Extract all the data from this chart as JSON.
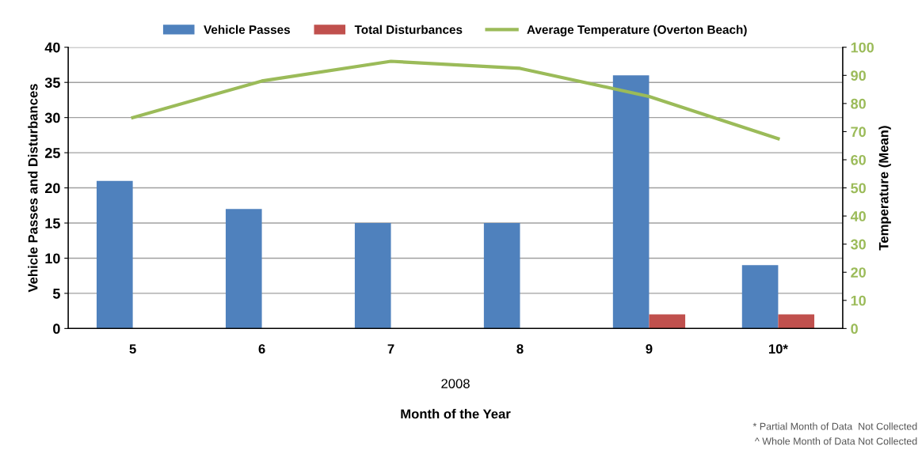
{
  "chart_data": {
    "type": "bar",
    "xlabel": "Month of the Year",
    "ylabel": "Vehicle Passes and Disturbances",
    "y2label": "Temperature (Mean)",
    "categories": [
      "5",
      "6",
      "7",
      "8",
      "9",
      "10*"
    ],
    "series": [
      {
        "name": "Vehicle Passes",
        "color": "#4f81bd",
        "values": [
          21,
          17,
          15,
          15,
          36,
          9
        ]
      },
      {
        "name": "Total Disturbances",
        "color": "#c0504d",
        "values": [
          0,
          0,
          0,
          0,
          2,
          2
        ]
      },
      {
        "name": "Average Temperature (Overton Beach)",
        "color": "#9bbb59",
        "type": "line",
        "axis": "y2",
        "values": [
          75,
          88,
          95,
          92.5,
          82.5,
          67.5
        ]
      }
    ],
    "ylim": [
      0,
      40
    ],
    "yticks": [
      0,
      5,
      10,
      15,
      20,
      25,
      30,
      35,
      40
    ],
    "y2lim": [
      0,
      100
    ],
    "y2ticks": [
      0,
      10,
      20,
      30,
      40,
      50,
      60,
      70,
      80,
      90,
      100
    ],
    "grid": "y",
    "legend": "top",
    "annotations": [
      "2008",
      "* Partial Month of Data  Not Collected",
      "^ Whole Month of Data Not Collected"
    ]
  }
}
